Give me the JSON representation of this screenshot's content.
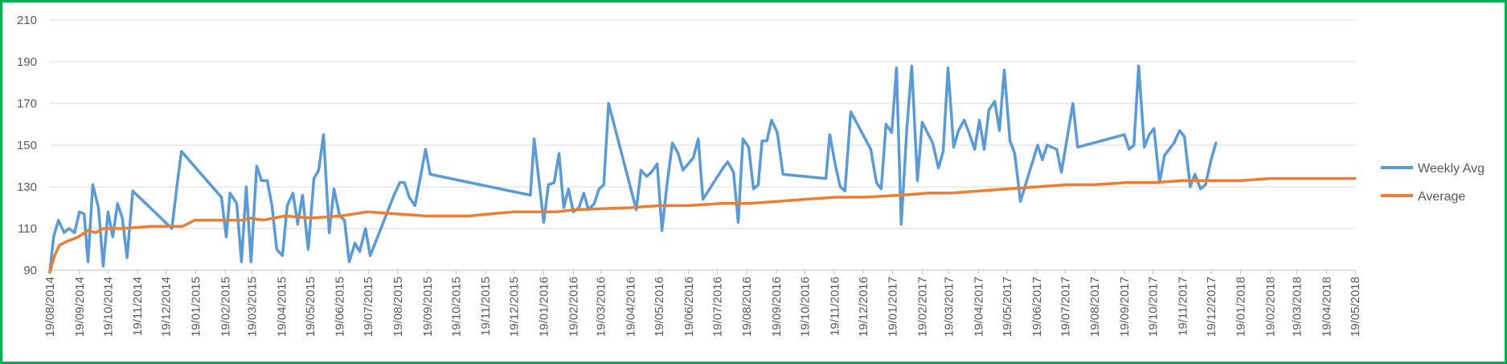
{
  "chart_data": {
    "type": "line",
    "title": "",
    "xlabel": "",
    "ylabel": "",
    "ylim": [
      90,
      210
    ],
    "yticks": [
      90,
      110,
      130,
      150,
      170,
      190,
      210
    ],
    "grid": true,
    "legend_position": "right",
    "x_range": [
      "19/08/2014",
      "19/05/2018"
    ],
    "x_tick_labels": [
      "19/08/2014",
      "19/09/2014",
      "19/10/2014",
      "19/11/2014",
      "19/12/2014",
      "19/01/2015",
      "19/02/2015",
      "19/03/2015",
      "19/04/2015",
      "19/05/2015",
      "19/06/2015",
      "19/07/2015",
      "19/08/2015",
      "19/09/2015",
      "19/10/2015",
      "19/11/2015",
      "19/12/2015",
      "19/01/2016",
      "19/02/2016",
      "19/03/2016",
      "19/04/2016",
      "19/05/2016",
      "19/06/2016",
      "19/07/2016",
      "19/08/2016",
      "19/09/2016",
      "19/10/2016",
      "19/11/2016",
      "19/12/2016",
      "19/01/2017",
      "19/02/2017",
      "19/03/2017",
      "19/04/2017",
      "19/05/2017",
      "19/06/2017",
      "19/07/2017",
      "19/08/2017",
      "19/09/2017",
      "19/10/2017",
      "19/11/2017",
      "19/12/2017",
      "19/01/2018",
      "19/02/2018",
      "19/03/2018",
      "19/04/2018",
      "19/05/2018"
    ],
    "series": [
      {
        "name": "Weekly Avg",
        "color": "#5b9bd5",
        "points": [
          [
            "2014-08-19",
            89
          ],
          [
            "2014-08-23",
            106
          ],
          [
            "2014-08-28",
            114
          ],
          [
            "2014-09-03",
            108
          ],
          [
            "2014-09-08",
            110
          ],
          [
            "2014-09-14",
            108
          ],
          [
            "2014-09-19",
            118
          ],
          [
            "2014-09-24",
            117
          ],
          [
            "2014-09-28",
            94
          ],
          [
            "2014-10-03",
            131
          ],
          [
            "2014-10-09",
            120
          ],
          [
            "2014-10-14",
            92
          ],
          [
            "2014-10-19",
            118
          ],
          [
            "2014-10-24",
            106
          ],
          [
            "2014-10-29",
            122
          ],
          [
            "2014-11-03",
            115
          ],
          [
            "2014-11-08",
            96
          ],
          [
            "2014-11-14",
            128
          ],
          [
            "2014-12-25",
            110
          ],
          [
            "2014-12-31",
            133
          ],
          [
            "2015-01-04",
            147
          ],
          [
            "2015-02-15",
            125
          ],
          [
            "2015-02-20",
            106
          ],
          [
            "2015-02-24",
            127
          ],
          [
            "2015-03-03",
            122
          ],
          [
            "2015-03-08",
            94
          ],
          [
            "2015-03-13",
            130
          ],
          [
            "2015-03-18",
            94
          ],
          [
            "2015-03-24",
            140
          ],
          [
            "2015-03-29",
            133
          ],
          [
            "2015-04-04",
            133
          ],
          [
            "2015-04-09",
            121
          ],
          [
            "2015-04-14",
            100
          ],
          [
            "2015-04-20",
            97
          ],
          [
            "2015-04-25",
            121
          ],
          [
            "2015-05-01",
            127
          ],
          [
            "2015-05-06",
            112
          ],
          [
            "2015-05-11",
            126
          ],
          [
            "2015-05-17",
            100
          ],
          [
            "2015-05-23",
            134
          ],
          [
            "2015-05-28",
            138
          ],
          [
            "2015-06-02",
            155
          ],
          [
            "2015-06-08",
            108
          ],
          [
            "2015-06-13",
            129
          ],
          [
            "2015-06-19",
            116
          ],
          [
            "2015-06-24",
            114
          ],
          [
            "2015-06-29",
            94
          ],
          [
            "2015-07-05",
            103
          ],
          [
            "2015-07-10",
            99
          ],
          [
            "2015-07-16",
            110
          ],
          [
            "2015-07-21",
            97
          ],
          [
            "2015-08-15",
            126
          ],
          [
            "2015-08-21",
            132
          ],
          [
            "2015-08-26",
            132
          ],
          [
            "2015-08-31",
            125
          ],
          [
            "2015-09-06",
            121
          ],
          [
            "2015-09-11",
            133
          ],
          [
            "2015-09-17",
            148
          ],
          [
            "2015-09-22",
            136
          ],
          [
            "2016-01-05",
            126
          ],
          [
            "2016-01-09",
            153
          ],
          [
            "2016-01-19",
            113
          ],
          [
            "2016-01-24",
            131
          ],
          [
            "2016-01-30",
            132
          ],
          [
            "2016-02-04",
            146
          ],
          [
            "2016-02-09",
            120
          ],
          [
            "2016-02-14",
            129
          ],
          [
            "2016-02-19",
            118
          ],
          [
            "2016-02-25",
            120
          ],
          [
            "2016-03-01",
            127
          ],
          [
            "2016-03-06",
            119
          ],
          [
            "2016-03-12",
            122
          ],
          [
            "2016-03-17",
            129
          ],
          [
            "2016-03-22",
            131
          ],
          [
            "2016-03-27",
            170
          ],
          [
            "2016-04-25",
            119
          ],
          [
            "2016-04-30",
            138
          ],
          [
            "2016-05-06",
            135
          ],
          [
            "2016-05-11",
            137
          ],
          [
            "2016-05-17",
            141
          ],
          [
            "2016-05-22",
            109
          ],
          [
            "2016-05-27",
            130
          ],
          [
            "2016-06-02",
            151
          ],
          [
            "2016-06-08",
            146
          ],
          [
            "2016-06-13",
            138
          ],
          [
            "2016-06-24",
            144
          ],
          [
            "2016-06-29",
            153
          ],
          [
            "2016-07-04",
            124
          ],
          [
            "2016-07-25",
            139
          ],
          [
            "2016-07-30",
            142
          ],
          [
            "2016-08-05",
            137
          ],
          [
            "2016-08-10",
            113
          ],
          [
            "2016-08-15",
            153
          ],
          [
            "2016-08-21",
            149
          ],
          [
            "2016-08-26",
            129
          ],
          [
            "2016-08-31",
            131
          ],
          [
            "2016-09-04",
            152
          ],
          [
            "2016-09-09",
            152
          ],
          [
            "2016-09-14",
            162
          ],
          [
            "2016-09-20",
            156
          ],
          [
            "2016-09-26",
            136
          ],
          [
            "2016-11-10",
            134
          ],
          [
            "2016-11-14",
            155
          ],
          [
            "2016-11-20",
            140
          ],
          [
            "2016-11-25",
            130
          ],
          [
            "2016-11-30",
            128
          ],
          [
            "2016-12-06",
            166
          ],
          [
            "2016-12-27",
            148
          ],
          [
            "2017-01-02",
            132
          ],
          [
            "2017-01-07",
            129
          ],
          [
            "2017-01-12",
            160
          ],
          [
            "2017-01-18",
            156
          ],
          [
            "2017-01-23",
            187
          ],
          [
            "2017-01-28",
            112
          ],
          [
            "2017-02-03",
            159
          ],
          [
            "2017-02-08",
            188
          ],
          [
            "2017-02-14",
            133
          ],
          [
            "2017-02-19",
            161
          ],
          [
            "2017-03-02",
            151
          ],
          [
            "2017-03-08",
            139
          ],
          [
            "2017-03-13",
            147
          ],
          [
            "2017-03-18",
            187
          ],
          [
            "2017-03-24",
            149
          ],
          [
            "2017-03-29",
            157
          ],
          [
            "2017-04-04",
            162
          ],
          [
            "2017-04-09",
            156
          ],
          [
            "2017-04-15",
            148
          ],
          [
            "2017-04-20",
            162
          ],
          [
            "2017-04-25",
            148
          ],
          [
            "2017-04-30",
            167
          ],
          [
            "2017-05-06",
            171
          ],
          [
            "2017-05-11",
            157
          ],
          [
            "2017-05-16",
            186
          ],
          [
            "2017-05-22",
            152
          ],
          [
            "2017-05-27",
            146
          ],
          [
            "2017-06-02",
            123
          ],
          [
            "2017-06-20",
            150
          ],
          [
            "2017-06-25",
            143
          ],
          [
            "2017-06-30",
            150
          ],
          [
            "2017-07-10",
            148
          ],
          [
            "2017-07-15",
            137
          ],
          [
            "2017-07-27",
            170
          ],
          [
            "2017-08-01",
            149
          ],
          [
            "2017-09-19",
            155
          ],
          [
            "2017-09-24",
            148
          ],
          [
            "2017-09-29",
            150
          ],
          [
            "2017-10-04",
            188
          ],
          [
            "2017-10-10",
            149
          ],
          [
            "2017-10-15",
            155
          ],
          [
            "2017-10-20",
            158
          ],
          [
            "2017-10-26",
            132
          ],
          [
            "2017-10-31",
            145
          ],
          [
            "2017-11-05",
            148
          ],
          [
            "2017-11-10",
            151
          ],
          [
            "2017-11-16",
            157
          ],
          [
            "2017-11-21",
            154
          ],
          [
            "2017-11-27",
            130
          ],
          [
            "2017-12-02",
            136
          ],
          [
            "2017-12-08",
            129
          ],
          [
            "2017-12-13",
            131
          ],
          [
            "2017-12-19",
            143
          ],
          [
            "2017-12-24",
            151
          ]
        ]
      },
      {
        "name": "Average",
        "color": "#ed7d31",
        "points": [
          [
            "2014-08-19",
            89
          ],
          [
            "2014-08-24",
            97
          ],
          [
            "2014-08-29",
            102
          ],
          [
            "2014-09-07",
            104
          ],
          [
            "2014-09-18",
            106
          ],
          [
            "2014-09-28",
            109
          ],
          [
            "2014-10-06",
            108
          ],
          [
            "2014-10-14",
            110
          ],
          [
            "2014-11-03",
            110
          ],
          [
            "2014-12-03",
            111
          ],
          [
            "2015-01-05",
            111
          ],
          [
            "2015-01-18",
            114
          ],
          [
            "2015-03-10",
            114
          ],
          [
            "2015-03-17",
            115
          ],
          [
            "2015-03-31",
            114
          ],
          [
            "2015-04-10",
            115
          ],
          [
            "2015-04-23",
            116
          ],
          [
            "2015-05-20",
            115
          ],
          [
            "2015-06-20",
            116
          ],
          [
            "2015-07-18",
            118
          ],
          [
            "2015-08-18",
            117
          ],
          [
            "2015-09-18",
            116
          ],
          [
            "2015-10-10",
            116
          ],
          [
            "2015-11-01",
            116
          ],
          [
            "2015-11-24",
            117
          ],
          [
            "2015-12-19",
            118
          ],
          [
            "2016-02-02",
            118
          ],
          [
            "2016-02-20",
            119
          ],
          [
            "2016-04-19",
            120
          ],
          [
            "2016-05-19",
            121
          ],
          [
            "2016-06-19",
            121
          ],
          [
            "2016-07-23",
            122
          ],
          [
            "2016-08-21",
            122
          ],
          [
            "2016-09-20",
            123
          ],
          [
            "2016-10-19",
            124
          ],
          [
            "2016-11-20",
            125
          ],
          [
            "2016-12-20",
            125
          ],
          [
            "2017-01-28",
            126
          ],
          [
            "2017-02-26",
            127
          ],
          [
            "2017-03-22",
            127
          ],
          [
            "2017-04-19",
            128
          ],
          [
            "2017-05-19",
            129
          ],
          [
            "2017-06-20",
            130
          ],
          [
            "2017-07-20",
            131
          ],
          [
            "2017-08-19",
            131
          ],
          [
            "2017-09-20",
            132
          ],
          [
            "2017-10-20",
            132
          ],
          [
            "2017-11-19",
            133
          ],
          [
            "2017-12-20",
            133
          ],
          [
            "2018-01-19",
            133
          ],
          [
            "2018-02-19",
            134
          ],
          [
            "2018-03-19",
            134
          ],
          [
            "2018-04-19",
            134
          ],
          [
            "2018-05-19",
            134
          ]
        ]
      }
    ]
  }
}
